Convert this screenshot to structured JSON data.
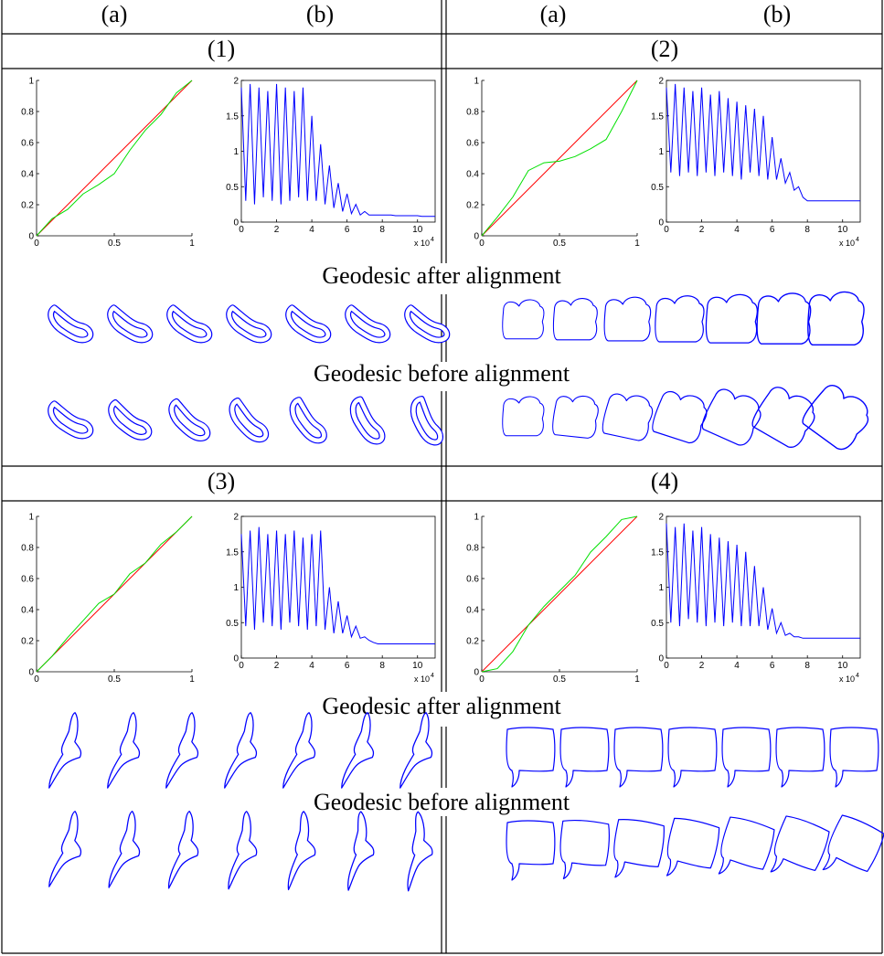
{
  "header": [
    "(a)",
    "(b)",
    "(a)",
    "(b)"
  ],
  "sections": [
    {
      "panels": [
        "(1)",
        "(2)"
      ],
      "after_label": "Geodesic after alignment",
      "before_label": "Geodesic before alignment"
    },
    {
      "panels": [
        "(3)",
        "(4)"
      ],
      "after_label": "Geodesic after alignment",
      "before_label": "Geodesic before alignment"
    }
  ],
  "chart_data": [
    {
      "type": "line",
      "frame": "open",
      "x": [
        0,
        0.1,
        0.2,
        0.3,
        0.4,
        0.5,
        0.6,
        0.7,
        0.8,
        0.9,
        1
      ],
      "series": [
        {
          "color": "#ff0000",
          "values": [
            0,
            0.1,
            0.2,
            0.3,
            0.4,
            0.5,
            0.6,
            0.7,
            0.8,
            0.9,
            1
          ]
        },
        {
          "color": "#00e000",
          "values": [
            0,
            0.11,
            0.17,
            0.27,
            0.33,
            0.4,
            0.55,
            0.68,
            0.78,
            0.92,
            1
          ]
        }
      ],
      "xlim": [
        0,
        1
      ],
      "ylim": [
        0,
        1
      ],
      "xticks": [
        0,
        0.5,
        1
      ],
      "yticks": [
        0,
        0.2,
        0.4,
        0.6,
        0.8,
        1
      ]
    },
    {
      "type": "line",
      "frame": "box",
      "x": [
        0,
        0.25,
        0.5,
        0.75,
        1,
        1.25,
        1.5,
        1.75,
        2,
        2.25,
        2.5,
        2.75,
        3,
        3.25,
        3.5,
        3.75,
        4,
        4.25,
        4.5,
        4.75,
        5,
        5.25,
        5.5,
        5.75,
        6,
        6.25,
        6.5,
        6.75,
        7,
        7.25,
        7.5,
        7.75,
        8,
        8.25,
        8.5,
        8.75,
        9,
        9.25,
        9.5,
        9.75,
        10,
        10.25,
        10.5,
        10.75,
        11
      ],
      "series": [
        {
          "color": "#0000ff",
          "values": [
            1.9,
            0.3,
            1.95,
            0.25,
            1.9,
            0.35,
            1.85,
            0.3,
            1.95,
            0.25,
            1.9,
            0.3,
            1.85,
            0.35,
            1.9,
            0.3,
            1.5,
            0.3,
            1.1,
            0.25,
            0.8,
            0.2,
            0.55,
            0.15,
            0.4,
            0.12,
            0.25,
            0.1,
            0.15,
            0.1,
            0.1,
            0.1,
            0.1,
            0.1,
            0.1,
            0.09,
            0.09,
            0.09,
            0.09,
            0.09,
            0.09,
            0.08,
            0.08,
            0.08,
            0.08
          ]
        }
      ],
      "xlim": [
        0,
        11
      ],
      "ylim": [
        0,
        2
      ],
      "xticks": [
        0,
        2,
        4,
        6,
        8,
        10
      ],
      "yticks": [
        0,
        0.5,
        1,
        1.5,
        2
      ],
      "x_scale_label": "x 10",
      "x_scale_exponent": "4"
    },
    {
      "type": "line",
      "frame": "open",
      "x": [
        0,
        0.1,
        0.2,
        0.3,
        0.4,
        0.5,
        0.6,
        0.7,
        0.8,
        0.9,
        1
      ],
      "series": [
        {
          "color": "#ff0000",
          "values": [
            0,
            0.1,
            0.2,
            0.3,
            0.4,
            0.5,
            0.6,
            0.7,
            0.8,
            0.9,
            1
          ]
        },
        {
          "color": "#00e000",
          "values": [
            0,
            0.12,
            0.25,
            0.42,
            0.47,
            0.48,
            0.51,
            0.56,
            0.62,
            0.8,
            1
          ]
        }
      ],
      "xlim": [
        0,
        1
      ],
      "ylim": [
        0,
        1
      ],
      "xticks": [
        0,
        0.5,
        1
      ],
      "yticks": [
        0,
        0.2,
        0.4,
        0.6,
        0.8,
        1
      ]
    },
    {
      "type": "line",
      "frame": "box",
      "x": [
        0,
        0.25,
        0.5,
        0.75,
        1,
        1.25,
        1.5,
        1.75,
        2,
        2.25,
        2.5,
        2.75,
        3,
        3.25,
        3.5,
        3.75,
        4,
        4.25,
        4.5,
        4.75,
        5,
        5.25,
        5.5,
        5.75,
        6,
        6.25,
        6.5,
        6.75,
        7,
        7.25,
        7.5,
        7.75,
        8,
        8.25,
        8.5,
        8.75,
        9,
        9.25,
        9.5,
        9.75,
        10,
        10.25,
        10.5,
        10.75,
        11
      ],
      "series": [
        {
          "color": "#0000ff",
          "values": [
            1.9,
            0.7,
            1.95,
            0.65,
            1.9,
            0.7,
            1.85,
            0.65,
            1.9,
            0.7,
            1.8,
            0.65,
            1.85,
            0.7,
            1.75,
            0.65,
            1.7,
            0.6,
            1.65,
            0.7,
            1.6,
            0.65,
            1.5,
            0.6,
            1.2,
            0.6,
            0.9,
            0.55,
            0.7,
            0.45,
            0.5,
            0.35,
            0.3,
            0.3,
            0.3,
            0.3,
            0.3,
            0.3,
            0.3,
            0.3,
            0.3,
            0.3,
            0.3,
            0.3,
            0.3
          ]
        }
      ],
      "xlim": [
        0,
        11
      ],
      "ylim": [
        0,
        2
      ],
      "xticks": [
        0,
        2,
        4,
        6,
        8,
        10
      ],
      "yticks": [
        0,
        0.5,
        1,
        1.5,
        2
      ],
      "x_scale_label": "x 10",
      "x_scale_exponent": "4"
    },
    {
      "type": "line",
      "frame": "open",
      "x": [
        0,
        0.1,
        0.2,
        0.3,
        0.4,
        0.5,
        0.6,
        0.7,
        0.8,
        0.9,
        1
      ],
      "series": [
        {
          "color": "#ff0000",
          "values": [
            0,
            0.1,
            0.2,
            0.3,
            0.4,
            0.5,
            0.6,
            0.7,
            0.8,
            0.9,
            1
          ]
        },
        {
          "color": "#00e000",
          "values": [
            0,
            0.1,
            0.22,
            0.33,
            0.44,
            0.5,
            0.63,
            0.7,
            0.82,
            0.9,
            1
          ]
        }
      ],
      "xlim": [
        0,
        1
      ],
      "ylim": [
        0,
        1
      ],
      "xticks": [
        0,
        0.5,
        1
      ],
      "yticks": [
        0,
        0.2,
        0.4,
        0.6,
        0.8,
        1
      ]
    },
    {
      "type": "line",
      "frame": "box",
      "x": [
        0,
        0.25,
        0.5,
        0.75,
        1,
        1.25,
        1.5,
        1.75,
        2,
        2.25,
        2.5,
        2.75,
        3,
        3.25,
        3.5,
        3.75,
        4,
        4.25,
        4.5,
        4.75,
        5,
        5.25,
        5.5,
        5.75,
        6,
        6.25,
        6.5,
        6.75,
        7,
        7.25,
        7.5,
        7.75,
        8,
        8.25,
        8.5,
        8.75,
        9,
        9.25,
        9.5,
        9.75,
        10,
        10.25,
        10.5,
        10.75,
        11
      ],
      "series": [
        {
          "color": "#0000ff",
          "values": [
            1.75,
            0.45,
            1.8,
            0.4,
            1.85,
            0.5,
            1.75,
            0.45,
            1.8,
            0.4,
            1.75,
            0.5,
            1.8,
            0.45,
            1.7,
            0.4,
            1.75,
            0.45,
            1.8,
            0.4,
            1.0,
            0.35,
            0.8,
            0.35,
            0.6,
            0.3,
            0.45,
            0.28,
            0.3,
            0.25,
            0.22,
            0.2,
            0.2,
            0.2,
            0.2,
            0.2,
            0.2,
            0.2,
            0.2,
            0.2,
            0.2,
            0.2,
            0.2,
            0.2,
            0.2
          ]
        }
      ],
      "xlim": [
        0,
        11
      ],
      "ylim": [
        0,
        2
      ],
      "xticks": [
        0,
        2,
        4,
        6,
        8,
        10
      ],
      "yticks": [
        0,
        0.5,
        1,
        1.5,
        2
      ],
      "x_scale_label": "x 10",
      "x_scale_exponent": "4"
    },
    {
      "type": "line",
      "frame": "open",
      "x": [
        0,
        0.1,
        0.2,
        0.3,
        0.4,
        0.5,
        0.6,
        0.7,
        0.8,
        0.9,
        1
      ],
      "series": [
        {
          "color": "#ff0000",
          "values": [
            0,
            0.1,
            0.2,
            0.3,
            0.4,
            0.5,
            0.6,
            0.7,
            0.8,
            0.9,
            1
          ]
        },
        {
          "color": "#00e000",
          "values": [
            0,
            0.02,
            0.13,
            0.3,
            0.42,
            0.52,
            0.62,
            0.77,
            0.87,
            0.98,
            1
          ]
        }
      ],
      "xlim": [
        0,
        1
      ],
      "ylim": [
        0,
        1
      ],
      "xticks": [
        0,
        0.5,
        1
      ],
      "yticks": [
        0,
        0.2,
        0.4,
        0.6,
        0.8,
        1
      ]
    },
    {
      "type": "line",
      "frame": "box",
      "x": [
        0,
        0.25,
        0.5,
        0.75,
        1,
        1.25,
        1.5,
        1.75,
        2,
        2.25,
        2.5,
        2.75,
        3,
        3.25,
        3.5,
        3.75,
        4,
        4.25,
        4.5,
        4.75,
        5,
        5.25,
        5.5,
        5.75,
        6,
        6.25,
        6.5,
        6.75,
        7,
        7.25,
        7.5,
        7.75,
        8,
        8.25,
        8.5,
        8.75,
        9,
        9.25,
        9.5,
        9.75,
        10,
        10.25,
        10.5,
        10.75,
        11
      ],
      "series": [
        {
          "color": "#0000ff",
          "values": [
            1.9,
            0.5,
            1.85,
            0.45,
            1.9,
            0.55,
            1.8,
            0.5,
            1.85,
            0.45,
            1.75,
            0.5,
            1.7,
            0.45,
            1.65,
            0.5,
            1.6,
            0.45,
            1.5,
            0.45,
            1.3,
            0.45,
            1.0,
            0.4,
            0.7,
            0.35,
            0.5,
            0.32,
            0.35,
            0.3,
            0.3,
            0.28,
            0.28,
            0.28,
            0.28,
            0.28,
            0.28,
            0.28,
            0.28,
            0.28,
            0.28,
            0.28,
            0.28,
            0.28,
            0.28
          ]
        }
      ],
      "xlim": [
        0,
        11
      ],
      "ylim": [
        0,
        2
      ],
      "xticks": [
        0,
        2,
        4,
        6,
        8,
        10
      ],
      "yticks": [
        0,
        0.5,
        1,
        1.5,
        2
      ],
      "x_scale_label": "x 10",
      "x_scale_exponent": "4"
    }
  ]
}
